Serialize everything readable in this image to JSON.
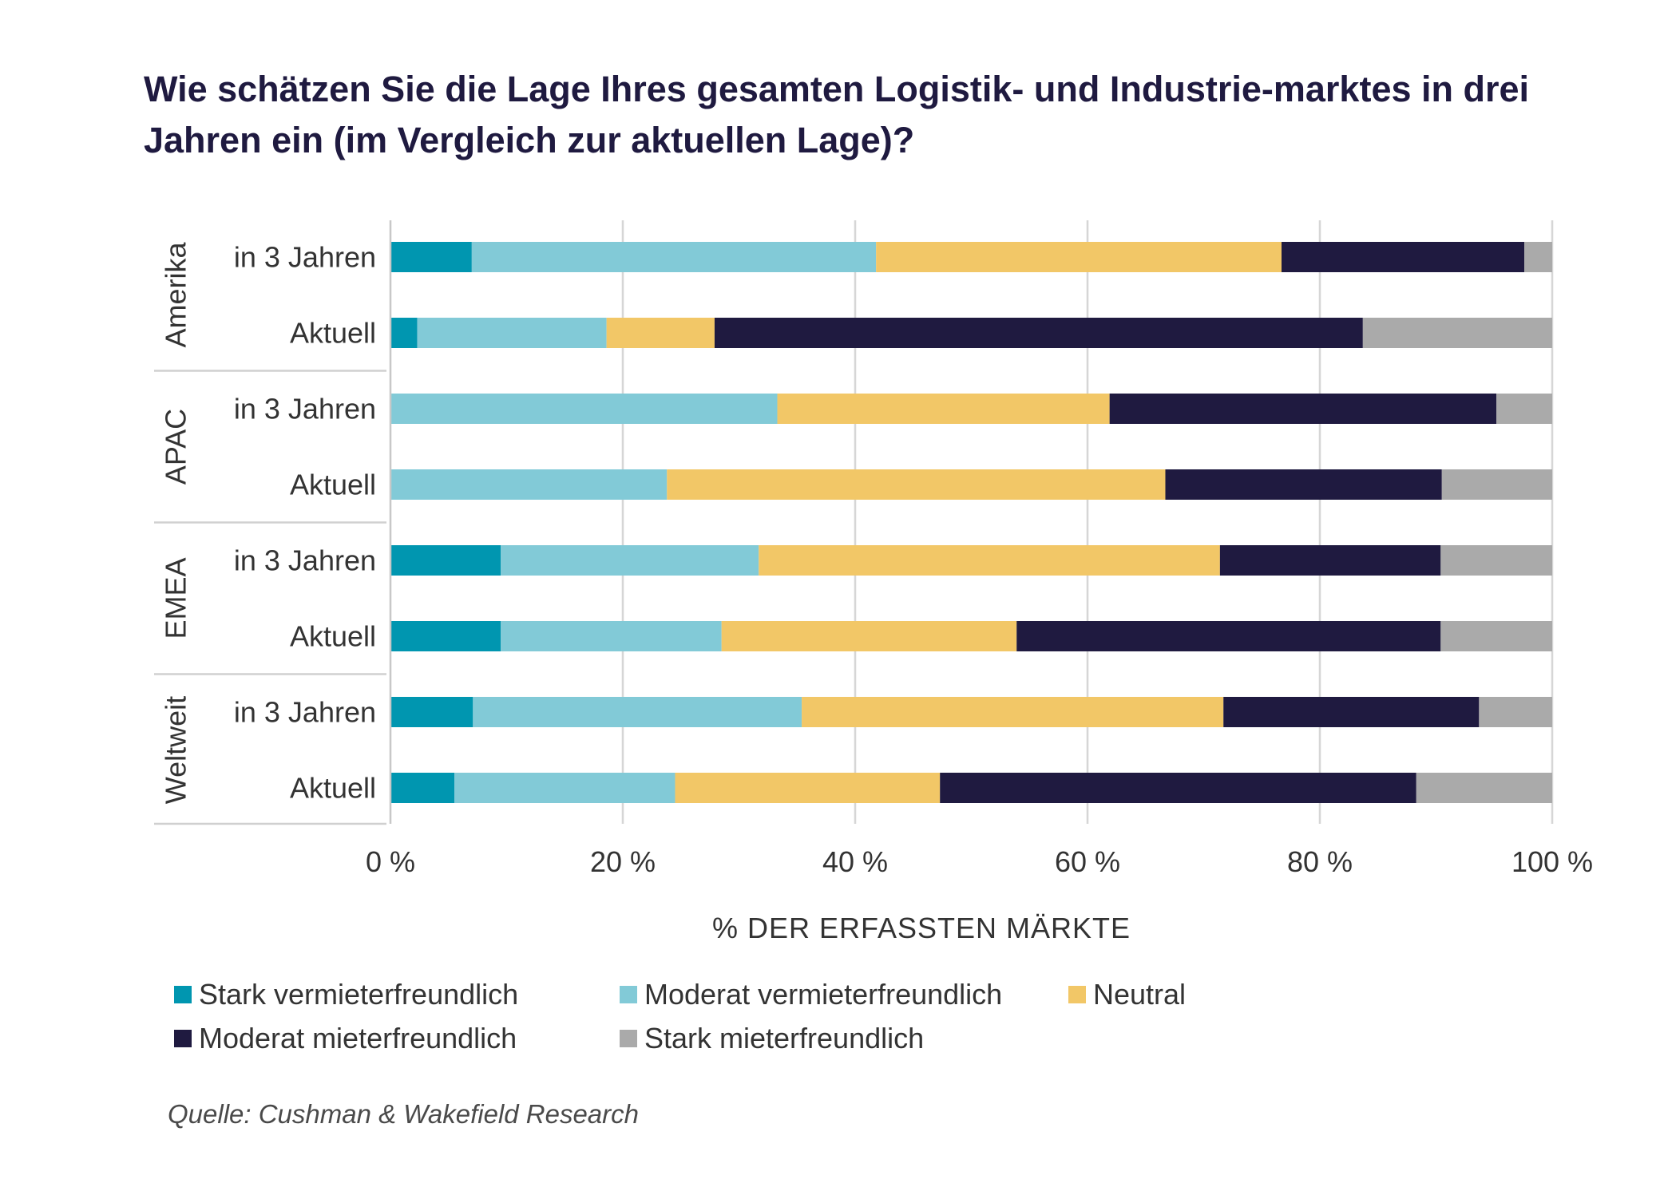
{
  "title": "Wie schätzen Sie die Lage Ihres gesamten Logistik- und Industrie-marktes in drei Jahren ein (im Vergleich zur aktuellen Lage)?",
  "source": "Quelle: Cushman & Wakefield Research",
  "chart_data": {
    "type": "bar",
    "orientation": "horizontal",
    "stacked": true,
    "title": "Wie schätzen Sie die Lage Ihres gesamten Logistik- und Industrie-marktes in drei Jahren ein (im Vergleich zur aktuellen Lage)?",
    "xlabel": "% DER ERFASSTEN MÄRKTE",
    "ylabel": "",
    "xlim": [
      0,
      100
    ],
    "xticks": [
      0,
      20,
      40,
      60,
      80,
      100
    ],
    "xtick_labels": [
      "0 %",
      "20 %",
      "40 %",
      "60 %",
      "80 %",
      "100 %"
    ],
    "grid": true,
    "legend_position": "bottom",
    "groups": [
      {
        "name": "Amerika",
        "categories": [
          "in 3 Jahren",
          "Aktuell"
        ]
      },
      {
        "name": "APAC",
        "categories": [
          "in 3 Jahren",
          "Aktuell"
        ]
      },
      {
        "name": "EMEA",
        "categories": [
          "in 3 Jahren",
          "Aktuell"
        ]
      },
      {
        "name": "Weltweit",
        "categories": [
          "in 3 Jahren",
          "Aktuell"
        ]
      }
    ],
    "categories": [
      "Amerika – in 3 Jahren",
      "Amerika – Aktuell",
      "APAC – in 3 Jahren",
      "APAC – Aktuell",
      "EMEA – in 3 Jahren",
      "EMEA – Aktuell",
      "Weltweit – in 3 Jahren",
      "Weltweit – Aktuell"
    ],
    "series": [
      {
        "name": "Stark vermieterfreundlich",
        "color": "#0096b0",
        "values": [
          7,
          2.3,
          0,
          0,
          9.5,
          9.5,
          7.1,
          5.5
        ]
      },
      {
        "name": "Moderat vermieterfreundlich",
        "color": "#82cad7",
        "values": [
          34.8,
          16.3,
          33.3,
          23.8,
          22.2,
          19.0,
          28.3,
          19.0
        ]
      },
      {
        "name": "Neutral",
        "color": "#f2c767",
        "values": [
          34.9,
          9.3,
          28.6,
          42.9,
          39.7,
          25.4,
          36.3,
          22.8
        ]
      },
      {
        "name": "Moderat mieterfreundlich",
        "color": "#1f1a40",
        "values": [
          20.9,
          55.8,
          33.3,
          23.8,
          19.0,
          36.5,
          22.0,
          41.0
        ]
      },
      {
        "name": "Stark mieterfreundlich",
        "color": "#aaaaaa",
        "values": [
          2.4,
          16.3,
          4.8,
          9.5,
          9.6,
          9.6,
          6.3,
          11.7
        ]
      }
    ]
  }
}
